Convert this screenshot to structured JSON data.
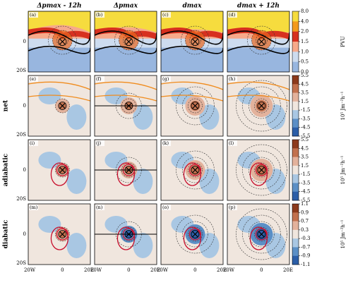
{
  "column_titles": [
    "Δpmax - 12h",
    "Δpmax",
    "dmax",
    "dmax + 12h"
  ],
  "row_labels": [
    "net",
    "adiabatic",
    "diabatic"
  ],
  "panel_labels": [
    "(a)",
    "(b)",
    "(c)",
    "(d)",
    "(e)",
    "(f)",
    "(g)",
    "(h)",
    "(i)",
    "(j)",
    "(k)",
    "(l)",
    "(m)",
    "(n)",
    "(o)",
    "(p)"
  ],
  "x_ticks": [
    "20W",
    "0",
    "20E"
  ],
  "y_ticks": [
    "0",
    "20S"
  ],
  "colorbars": [
    {
      "label": "PVU",
      "ticks": [
        {
          "value": 8,
          "label": "8.0"
        },
        {
          "value": 4,
          "label": "4.0"
        },
        {
          "value": 2,
          "label": "2.0"
        },
        {
          "value": 1.5,
          "label": "1.5"
        },
        {
          "value": 1,
          "label": "1.0"
        },
        {
          "value": 0.5,
          "label": "0.5"
        },
        {
          "value": 0,
          "label": "0.0"
        }
      ],
      "colors": [
        "#f6dc3e",
        "#f39a1e",
        "#d7301f",
        "#f7a98a",
        "#cddcef",
        "#98b6df"
      ]
    },
    {
      "label": "10⁵ Jm⁻²h⁻¹",
      "ticks": [
        5.5,
        4.5,
        3.5,
        1.5,
        -1.5,
        -3.5,
        -4.5,
        -5.5
      ],
      "colors": [
        "#8c3a1c",
        "#c2714e",
        "#e3b29c",
        "#f0e6de",
        "#a9c7e3",
        "#5b8fc6",
        "#2b5ea8"
      ]
    },
    {
      "label": "10⁵ Jm⁻²h⁻¹",
      "ticks": [
        5.5,
        4.5,
        3.5,
        1.5,
        -1.5,
        -3.5,
        -4.5,
        -5.5
      ],
      "colors": [
        "#8c3a1c",
        "#c2714e",
        "#e3b29c",
        "#f0e6de",
        "#a9c7e3",
        "#5b8fc6",
        "#2b5ea8"
      ]
    },
    {
      "label": "10⁵ Jm⁻²h⁻¹",
      "ticks": [
        1.1,
        0.9,
        0.7,
        0.3,
        -0.3,
        -0.7,
        -0.9,
        -1.1
      ],
      "colors": [
        "#8c3a1c",
        "#c2714e",
        "#e3b29c",
        "#f0e6de",
        "#a9c7e3",
        "#5b8fc6",
        "#2b5ea8"
      ]
    }
  ]
}
